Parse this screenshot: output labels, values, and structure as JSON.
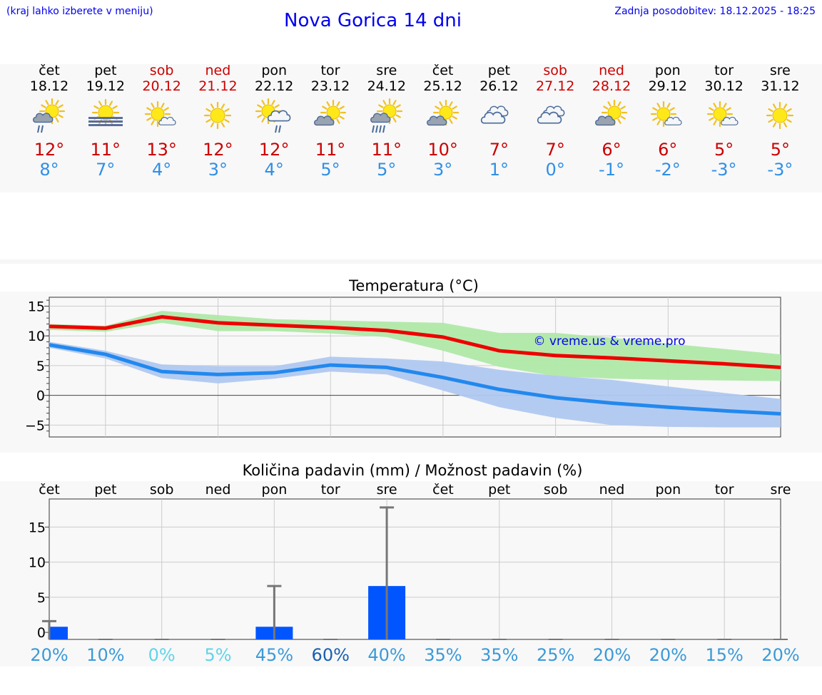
{
  "header": {
    "hint": "(kraj lahko izberete v meniju)",
    "title": "Nova Gorica 14 dni",
    "updated": "Zadnja posodobitev: 18.12.2025 - 18:25"
  },
  "days": [
    {
      "name": "čet",
      "date": "18.12",
      "hi": "12°",
      "lo": "8°",
      "weekend": false,
      "icon": "partly-cloudy-rain-icon"
    },
    {
      "name": "pet",
      "date": "19.12",
      "hi": "11°",
      "lo": "7°",
      "weekend": false,
      "icon": "sun-fog-icon"
    },
    {
      "name": "sob",
      "date": "20.12",
      "hi": "13°",
      "lo": "4°",
      "weekend": true,
      "icon": "sun-small-cloud-icon"
    },
    {
      "name": "ned",
      "date": "21.12",
      "hi": "12°",
      "lo": "3°",
      "weekend": true,
      "icon": "sun-icon"
    },
    {
      "name": "pon",
      "date": "22.12",
      "hi": "12°",
      "lo": "4°",
      "weekend": false,
      "icon": "sun-cloud-rain-icon"
    },
    {
      "name": "tor",
      "date": "23.12",
      "hi": "11°",
      "lo": "5°",
      "weekend": false,
      "icon": "partly-cloudy-icon"
    },
    {
      "name": "sre",
      "date": "24.12",
      "hi": "11°",
      "lo": "5°",
      "weekend": false,
      "icon": "partly-cloudy-heavy-rain-icon"
    },
    {
      "name": "čet",
      "date": "25.12",
      "hi": "10°",
      "lo": "3°",
      "weekend": false,
      "icon": "partly-cloudy-icon"
    },
    {
      "name": "pet",
      "date": "26.12",
      "hi": "7°",
      "lo": "1°",
      "weekend": false,
      "icon": "cloudy-icon"
    },
    {
      "name": "sob",
      "date": "27.12",
      "hi": "7°",
      "lo": "0°",
      "weekend": true,
      "icon": "cloudy-icon"
    },
    {
      "name": "ned",
      "date": "28.12",
      "hi": "6°",
      "lo": "-1°",
      "weekend": true,
      "icon": "partly-cloudy-icon"
    },
    {
      "name": "pon",
      "date": "29.12",
      "hi": "6°",
      "lo": "-2°",
      "weekend": false,
      "icon": "sun-small-cloud-icon"
    },
    {
      "name": "tor",
      "date": "30.12",
      "hi": "5°",
      "lo": "-3°",
      "weekend": false,
      "icon": "sun-small-cloud-icon"
    },
    {
      "name": "sre",
      "date": "31.12",
      "hi": "5°",
      "lo": "-3°",
      "weekend": false,
      "icon": "sun-icon"
    }
  ],
  "colors": {
    "max_line": "#ee0000",
    "max_band": "#b0e8a8",
    "min_line": "#2288ee",
    "min_band": "#b0c8f0",
    "bar": "#0055ff",
    "whisker": "#777777",
    "weekend": "#cc0000",
    "min_text": "#2f8fe6"
  },
  "chart_data": [
    {
      "type": "line",
      "title": "Temperatura (°C)",
      "watermark": "© vreme.us & vreme.pro",
      "x": [
        0,
        1,
        2,
        3,
        4,
        5,
        6,
        7,
        8,
        9,
        10,
        11,
        12,
        13
      ],
      "ylim": [
        -7,
        16.5
      ],
      "yticks": [
        -5,
        0,
        5,
        10,
        15
      ],
      "ytick_labels": [
        "−5",
        "0",
        "5",
        "10",
        "15"
      ],
      "series": [
        {
          "name": "max",
          "values": [
            11.6,
            11.3,
            13.2,
            12.2,
            11.8,
            11.4,
            10.9,
            9.8,
            7.5,
            6.7,
            6.3,
            5.8,
            5.3,
            4.7
          ],
          "band_low": [
            11.0,
            10.7,
            12.2,
            10.8,
            10.8,
            10.4,
            9.8,
            7.5,
            4.8,
            3.2,
            2.8,
            2.6,
            2.5,
            2.4
          ],
          "band_high": [
            12.0,
            11.7,
            14.2,
            13.5,
            12.8,
            12.6,
            12.4,
            12.2,
            10.5,
            10.5,
            9.7,
            8.7,
            7.8,
            6.9
          ]
        },
        {
          "name": "min",
          "values": [
            8.5,
            6.9,
            4.0,
            3.5,
            3.8,
            5.1,
            4.7,
            3.0,
            1.0,
            -0.4,
            -1.3,
            -2.0,
            -2.6,
            -3.1
          ],
          "band_low": [
            8.0,
            6.2,
            2.9,
            2.0,
            2.8,
            4.0,
            3.5,
            0.8,
            -2.0,
            -3.8,
            -5.0,
            -5.3,
            -5.4,
            -5.4
          ],
          "band_high": [
            9.0,
            7.5,
            5.2,
            4.9,
            4.9,
            6.5,
            6.2,
            5.7,
            4.3,
            3.3,
            2.6,
            1.5,
            0.4,
            -0.6
          ]
        }
      ]
    },
    {
      "type": "bar",
      "title": "Količina padavin (mm) / Možnost padavin (%)",
      "categories": [
        "čet",
        "pet",
        "sob",
        "ned",
        "pon",
        "tor",
        "sre",
        "čet",
        "pet",
        "sob",
        "ned",
        "pon",
        "tor",
        "sre"
      ],
      "values": [
        0.8,
        0,
        0,
        0,
        0.8,
        0,
        6.6,
        0,
        0,
        0,
        0,
        0,
        0,
        0
      ],
      "whisker_max": [
        1.6,
        0,
        0,
        0,
        6.6,
        0,
        17.8,
        0,
        0,
        0,
        0,
        0,
        0,
        0
      ],
      "ylim": [
        -1,
        19
      ],
      "yticks": [
        0,
        5,
        10,
        15
      ],
      "ytick_labels": [
        "0",
        "5",
        "10",
        "15"
      ],
      "probabilities": [
        "20%",
        "10%",
        "0%",
        "5%",
        "45%",
        "60%",
        "40%",
        "35%",
        "35%",
        "25%",
        "20%",
        "20%",
        "15%",
        "20%"
      ],
      "probability_values": [
        20,
        10,
        0,
        5,
        45,
        60,
        40,
        35,
        35,
        25,
        20,
        20,
        15,
        20
      ]
    }
  ]
}
